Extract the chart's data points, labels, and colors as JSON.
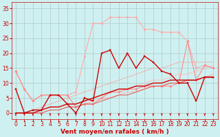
{
  "xlabel": "Vent moyen/en rafales ( km/h )",
  "bg_color": "#cff0f0",
  "grid_color": "#b0c8c8",
  "x_ticks": [
    0,
    1,
    2,
    3,
    4,
    5,
    6,
    7,
    8,
    9,
    10,
    11,
    12,
    13,
    14,
    15,
    16,
    17,
    18,
    19,
    20,
    21,
    22,
    23
  ],
  "y_ticks": [
    0,
    5,
    10,
    15,
    20,
    25,
    30,
    35
  ],
  "ylim": [
    -2,
    37
  ],
  "xlim": [
    -0.5,
    23.5
  ],
  "series": [
    {
      "x": [
        0,
        1,
        2,
        3,
        4,
        5,
        6,
        7,
        8,
        9,
        10,
        11,
        12,
        13,
        14,
        15,
        16,
        17,
        18,
        19,
        20,
        21,
        22,
        23
      ],
      "y": [
        8,
        0,
        1,
        1,
        6,
        6,
        3,
        0,
        5,
        4,
        20,
        21,
        15,
        20,
        15,
        19,
        17,
        14,
        13,
        10,
        10,
        4,
        12,
        12
      ],
      "color": "#cc0000",
      "marker": "s",
      "markersize": 2.0,
      "linewidth": 1.0,
      "alpha": 1.0,
      "zorder": 5
    },
    {
      "x": [
        0,
        1,
        2,
        3,
        4,
        5,
        6,
        7,
        8,
        9,
        10,
        11,
        12,
        13,
        14,
        15,
        16,
        17,
        18,
        19,
        20,
        21,
        22,
        23
      ],
      "y": [
        14,
        8,
        4,
        6,
        6,
        6,
        6,
        7,
        19,
        30,
        30,
        32,
        32,
        32,
        32,
        28,
        28,
        27,
        27,
        27,
        24,
        15,
        16,
        15
      ],
      "color": "#ffaaaa",
      "marker": "o",
      "markersize": 2.0,
      "linewidth": 0.8,
      "alpha": 1.0,
      "zorder": 3
    },
    {
      "x": [
        0,
        1,
        2,
        3,
        4,
        5,
        6,
        7,
        8,
        9,
        10,
        11,
        12,
        13,
        14,
        15,
        16,
        17,
        18,
        19,
        20,
        21,
        22,
        23
      ],
      "y": [
        14,
        8,
        4,
        6,
        6,
        6,
        6,
        2,
        3,
        3,
        5,
        7,
        7,
        8,
        8,
        9,
        9,
        9,
        9,
        10,
        24,
        11,
        16,
        15
      ],
      "color": "#ff8888",
      "marker": "o",
      "markersize": 2.0,
      "linewidth": 0.8,
      "alpha": 1.0,
      "zorder": 3
    },
    {
      "x": [
        0,
        1,
        2,
        3,
        4,
        5,
        6,
        7,
        8,
        9,
        10,
        11,
        12,
        13,
        14,
        15,
        16,
        17,
        18,
        19,
        20,
        21,
        22,
        23
      ],
      "y": [
        0,
        0,
        0,
        0,
        1,
        1,
        2,
        2,
        3,
        4,
        5,
        5,
        6,
        7,
        7,
        8,
        9,
        9,
        10,
        10,
        11,
        11,
        12,
        13
      ],
      "color": "#ffaaaa",
      "marker": null,
      "markersize": 0,
      "linewidth": 0.7,
      "alpha": 0.9,
      "zorder": 2
    },
    {
      "x": [
        0,
        1,
        2,
        3,
        4,
        5,
        6,
        7,
        8,
        9,
        10,
        11,
        12,
        13,
        14,
        15,
        16,
        17,
        18,
        19,
        20,
        21,
        22,
        23
      ],
      "y": [
        0,
        0,
        1,
        1,
        2,
        2,
        3,
        3,
        4,
        5,
        6,
        7,
        8,
        8,
        9,
        10,
        11,
        11,
        12,
        13,
        13,
        14,
        15,
        16
      ],
      "color": "#ffbbbb",
      "marker": null,
      "markersize": 0,
      "linewidth": 0.7,
      "alpha": 0.9,
      "zorder": 2
    },
    {
      "x": [
        0,
        1,
        2,
        3,
        4,
        5,
        6,
        7,
        8,
        9,
        10,
        11,
        12,
        13,
        14,
        15,
        16,
        17,
        18,
        19,
        20,
        21,
        22,
        23
      ],
      "y": [
        0,
        0,
        0,
        1,
        2,
        2,
        3,
        3,
        4,
        5,
        6,
        7,
        8,
        8,
        9,
        9,
        10,
        10,
        11,
        11,
        11,
        11,
        12,
        12
      ],
      "color": "#cc0000",
      "marker": null,
      "markersize": 0,
      "linewidth": 1.2,
      "alpha": 0.85,
      "zorder": 4
    },
    {
      "x": [
        0,
        1,
        2,
        3,
        4,
        5,
        6,
        7,
        8,
        9,
        10,
        11,
        12,
        13,
        14,
        15,
        16,
        17,
        18,
        19,
        20,
        21,
        22,
        23
      ],
      "y": [
        0,
        0,
        0,
        0,
        1,
        1,
        2,
        2,
        3,
        3,
        4,
        5,
        6,
        6,
        7,
        8,
        9,
        9,
        10,
        10,
        11,
        11,
        12,
        12
      ],
      "color": "#dd4444",
      "marker": null,
      "markersize": 0,
      "linewidth": 0.8,
      "alpha": 0.8,
      "zorder": 3
    },
    {
      "x": [
        0,
        1,
        2,
        3,
        4,
        5,
        6,
        7,
        8,
        9,
        10,
        11,
        12,
        13,
        14,
        15,
        16,
        17,
        18,
        19,
        20,
        21,
        22,
        23
      ],
      "y": [
        0,
        0,
        1,
        2,
        3,
        4,
        5,
        6,
        7,
        8,
        9,
        10,
        11,
        12,
        13,
        14,
        15,
        15,
        16,
        17,
        17,
        17,
        17,
        17
      ],
      "color": "#ff9999",
      "marker": null,
      "markersize": 0,
      "linewidth": 0.7,
      "alpha": 0.7,
      "zorder": 2
    }
  ],
  "arrow_color": "#cc0000",
  "tick_label_color": "#cc0000",
  "xlabel_color": "#cc0000",
  "ylabel_color": "#cc0000",
  "axis_label_fontsize": 6.5,
  "tick_fontsize": 5.5
}
